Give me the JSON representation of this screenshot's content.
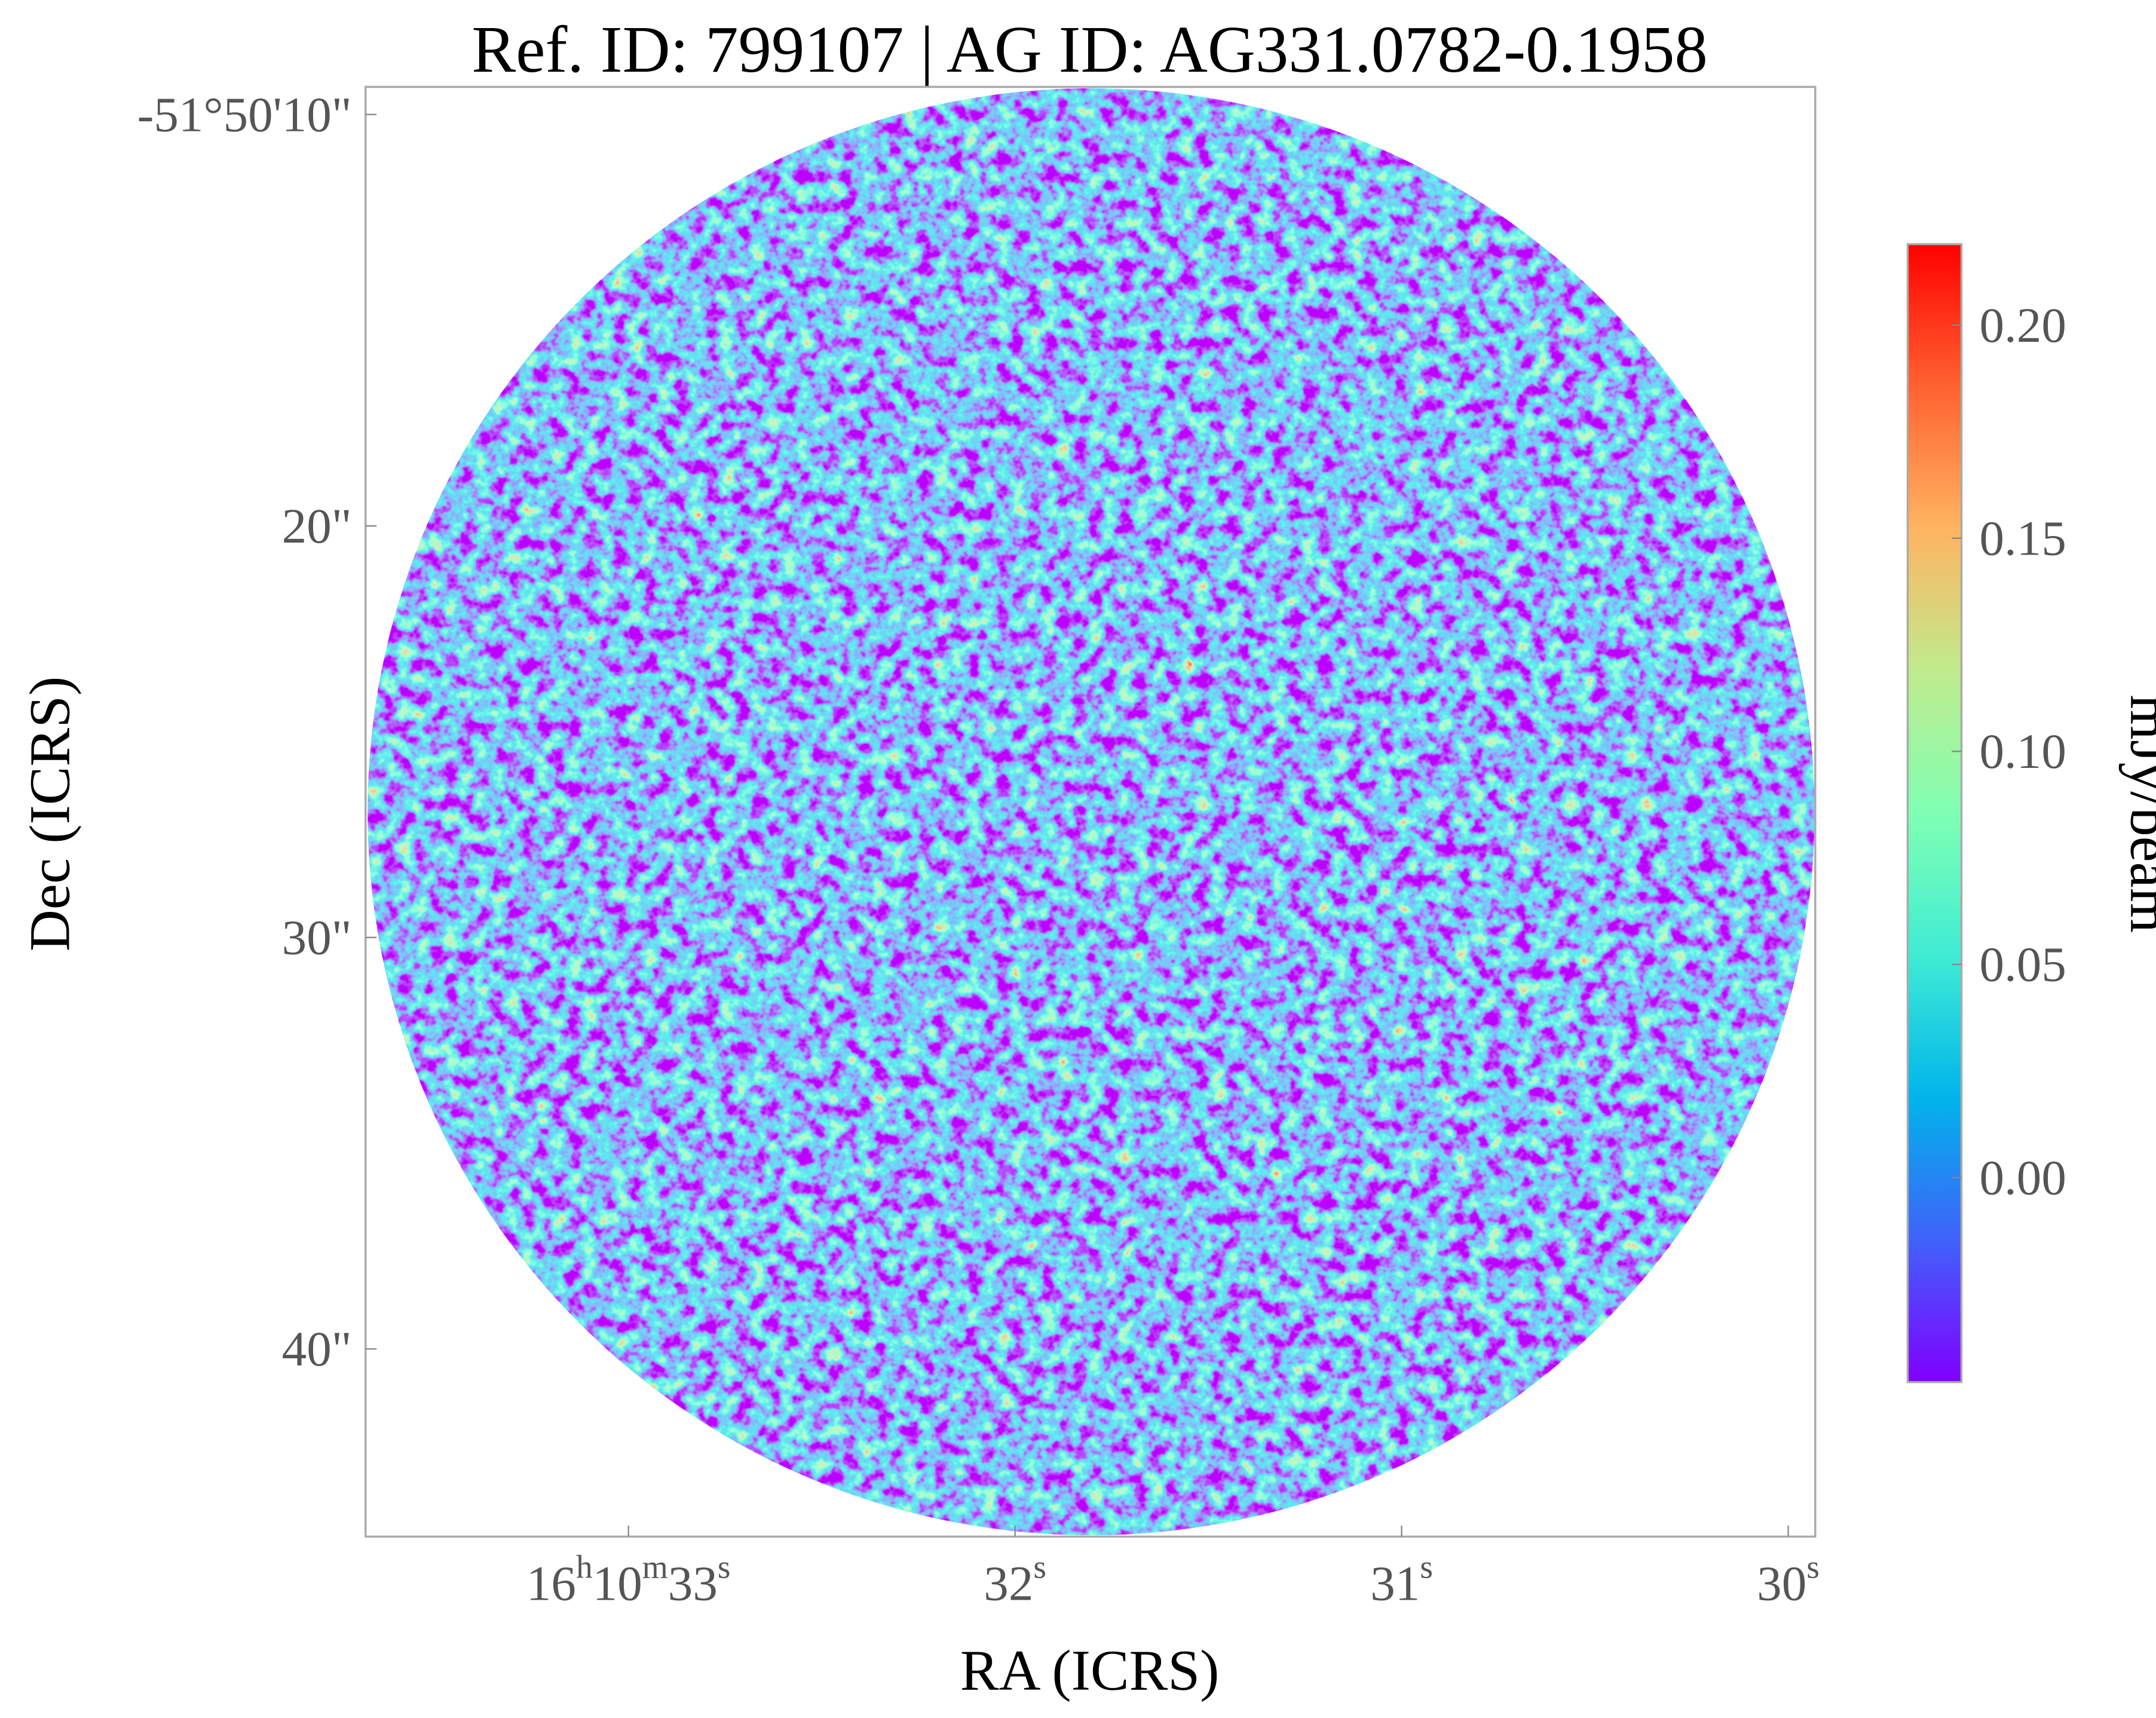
{
  "chart_data": {
    "type": "image",
    "title": "Ref. ID: 799107 | AG ID: AG331.0782-0.1958",
    "x_label": "RA (ICRS)",
    "y_label": "Dec (ICRS)",
    "xlim": [
      33.68,
      29.93
    ],
    "xticks": [
      {
        "value": 33,
        "label": "16h10m33s"
      },
      {
        "value": 32,
        "label": "32s"
      },
      {
        "value": 31,
        "label": "31s"
      },
      {
        "value": 30,
        "label": "30s"
      }
    ],
    "ylim": [
      9.33,
      44.56
    ],
    "yticks": [
      {
        "value": 10,
        "label": "-51°50'10\""
      },
      {
        "value": 20,
        "label": "20\""
      },
      {
        "value": 30,
        "label": "30\""
      },
      {
        "value": 40,
        "label": "40\""
      }
    ],
    "colorbar": {
      "label": "mJy/beam",
      "lim": [
        -0.048,
        0.219
      ],
      "ticks": [
        {
          "value": 0,
          "label": "0.00"
        },
        {
          "value": 0.05,
          "label": "0.05"
        },
        {
          "value": 0.1,
          "label": "0.10"
        },
        {
          "value": 0.15,
          "label": "0.15"
        },
        {
          "value": 0.2,
          "label": "0.20"
        }
      ],
      "colormap": [
        "#8000ff",
        "#4062fa",
        "#00b4eb",
        "#40ecd4",
        "#80ffb4",
        "#c0eb8d",
        "#ffb462",
        "#ff6231",
        "#ff0000"
      ]
    }
  }
}
